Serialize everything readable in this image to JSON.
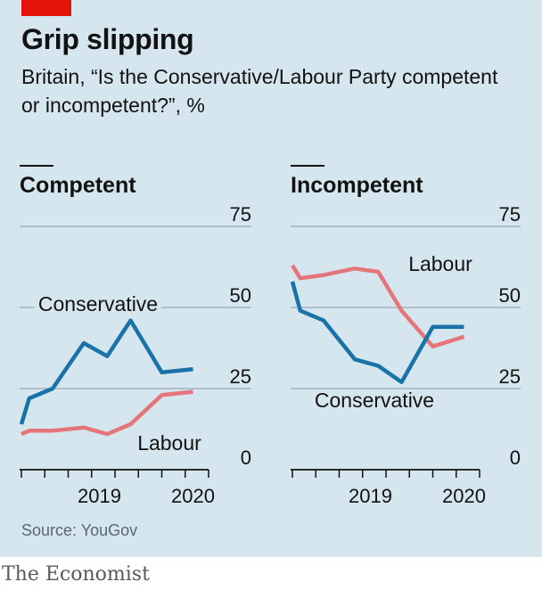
{
  "header": {
    "title": "Grip slipping",
    "subtitle": "Britain, “Is the Conservative/Labour Party competent or incompetent?”, %"
  },
  "footer": {
    "source": "Source: YouGov",
    "brand": "The Economist"
  },
  "colors": {
    "conservative": "#1a73a8",
    "labour": "#e4757a",
    "brand_red": "#e3120b",
    "background": "#d6e6ef"
  },
  "chart_data": [
    {
      "type": "line",
      "title": "Competent",
      "ylim": [
        0,
        75
      ],
      "yticks": [
        "75",
        "50",
        "25",
        "0"
      ],
      "xticks": [
        "2019",
        "2020"
      ],
      "series": [
        {
          "name": "Conservative",
          "x": [
            "2018-09",
            "2018-10",
            "2019-01",
            "2019-05",
            "2019-08",
            "2019-11",
            "2020-03",
            "2020-07"
          ],
          "values": [
            14,
            22,
            25,
            39,
            35,
            46,
            30,
            31
          ]
        },
        {
          "name": "Labour",
          "x": [
            "2018-09",
            "2018-10",
            "2019-01",
            "2019-05",
            "2019-08",
            "2019-11",
            "2020-03",
            "2020-07"
          ],
          "values": [
            11,
            12,
            12,
            13,
            11,
            14,
            23,
            24
          ]
        }
      ]
    },
    {
      "type": "line",
      "title": "Incompetent",
      "ylim": [
        0,
        75
      ],
      "yticks": [
        "75",
        "50",
        "25",
        "0"
      ],
      "xticks": [
        "2019",
        "2020"
      ],
      "series": [
        {
          "name": "Conservative",
          "x": [
            "2018-09",
            "2018-10",
            "2019-01",
            "2019-05",
            "2019-08",
            "2019-11",
            "2020-03",
            "2020-07"
          ],
          "values": [
            58,
            49,
            46,
            34,
            32,
            27,
            44,
            44
          ]
        },
        {
          "name": "Labour",
          "x": [
            "2018-09",
            "2018-10",
            "2019-01",
            "2019-05",
            "2019-08",
            "2019-11",
            "2020-03",
            "2020-07"
          ],
          "values": [
            63,
            59,
            60,
            62,
            61,
            49,
            38,
            41
          ]
        }
      ]
    }
  ]
}
